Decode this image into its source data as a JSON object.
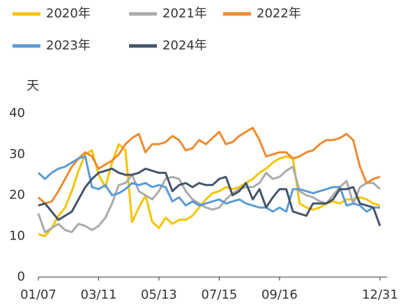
{
  "chart_data": {
    "type": "line",
    "y_label": "天",
    "categories": [
      "01/07",
      null,
      null,
      null,
      null,
      null,
      null,
      null,
      null,
      "03/11",
      null,
      null,
      null,
      null,
      null,
      null,
      null,
      null,
      "05/13",
      null,
      null,
      null,
      null,
      null,
      null,
      null,
      null,
      "07/15",
      null,
      null,
      null,
      null,
      null,
      null,
      null,
      null,
      "09/16",
      null,
      null,
      null,
      null,
      null,
      null,
      null,
      null,
      null,
      null,
      null,
      null,
      null,
      null,
      "12/31"
    ],
    "series": [
      {
        "name": "2020年",
        "color": "#f5c400",
        "values": [
          10.5,
          10,
          12,
          15,
          17,
          21,
          26,
          30,
          31,
          25,
          22,
          28,
          32.5,
          31,
          13.5,
          17,
          20,
          13.5,
          12,
          14.5,
          13,
          14,
          14,
          15,
          17,
          19,
          20.5,
          21,
          22,
          21.5,
          22,
          23,
          24,
          25.5,
          26.5,
          28,
          29,
          29.5,
          29,
          18,
          17,
          16.5,
          17,
          18,
          18.5,
          18,
          19,
          19,
          19.5,
          19,
          18,
          17.5
        ]
      },
      {
        "name": "2021年",
        "color": "#aaaaaa",
        "values": [
          15.5,
          11,
          12,
          13,
          11.5,
          11,
          13,
          12.5,
          11.5,
          12.5,
          14.5,
          18,
          22.5,
          23,
          25,
          21,
          20,
          19,
          21,
          24,
          24.5,
          24,
          21,
          19,
          18,
          17,
          16.5,
          17,
          19,
          20.5,
          21.5,
          22,
          22,
          23,
          25.5,
          24,
          24.5,
          26,
          27,
          21,
          20,
          19.5,
          18.5,
          18,
          20,
          22,
          23.5,
          18,
          22,
          23,
          23,
          21.5
        ]
      },
      {
        "name": "2022年",
        "color": "#ee8a30",
        "values": [
          19.5,
          18,
          18.5,
          21,
          24,
          27,
          29,
          30.5,
          29.5,
          26.5,
          27.5,
          28.5,
          30,
          32.5,
          34,
          35,
          30.5,
          32.5,
          32.5,
          33,
          34.5,
          33.5,
          31,
          31.5,
          33.5,
          32.5,
          34,
          35.5,
          32.5,
          33,
          34.5,
          35.5,
          36.5,
          33.5,
          29.5,
          30,
          30.5,
          30.5,
          29,
          29.5,
          30.5,
          31,
          32.5,
          33.5,
          33.5,
          34,
          35,
          33.5,
          27,
          23,
          24,
          24.5
        ]
      },
      {
        "name": "2023年",
        "color": "#5b9bd5",
        "values": [
          25.5,
          24,
          25.5,
          26.5,
          27,
          28,
          29,
          29.5,
          22,
          21.5,
          22.5,
          20,
          20.5,
          21.5,
          23,
          22.5,
          23,
          22,
          22.5,
          22,
          18.5,
          19.5,
          17.5,
          18.5,
          17.5,
          18,
          18.5,
          19,
          18,
          18.5,
          19,
          18,
          17.5,
          17,
          17,
          16,
          17,
          16,
          21.5,
          21.5,
          21,
          20.5,
          21,
          21.5,
          22,
          22,
          17.5,
          18,
          17.5,
          16,
          17,
          17
        ]
      },
      {
        "name": "2024年",
        "color": "#44546a",
        "values": [
          17.5,
          18,
          16,
          14,
          15,
          16,
          19,
          22,
          24,
          25.5,
          26,
          26.5,
          25.5,
          25,
          25,
          25.5,
          26.5,
          26,
          25.5,
          25.5,
          21,
          22.5,
          23,
          22,
          23,
          22.5,
          22.5,
          24,
          24.5,
          20,
          21,
          23,
          19,
          21.5,
          17,
          19.5,
          21.5,
          21.5,
          16,
          15.5,
          15,
          18,
          18,
          18,
          19,
          21.5,
          21.5,
          22,
          18,
          17.5,
          17,
          12.5
        ]
      }
    ],
    "ylim": [
      0,
      40
    ],
    "yticks": [
      0,
      10,
      20,
      30,
      40
    ],
    "grid": false
  }
}
